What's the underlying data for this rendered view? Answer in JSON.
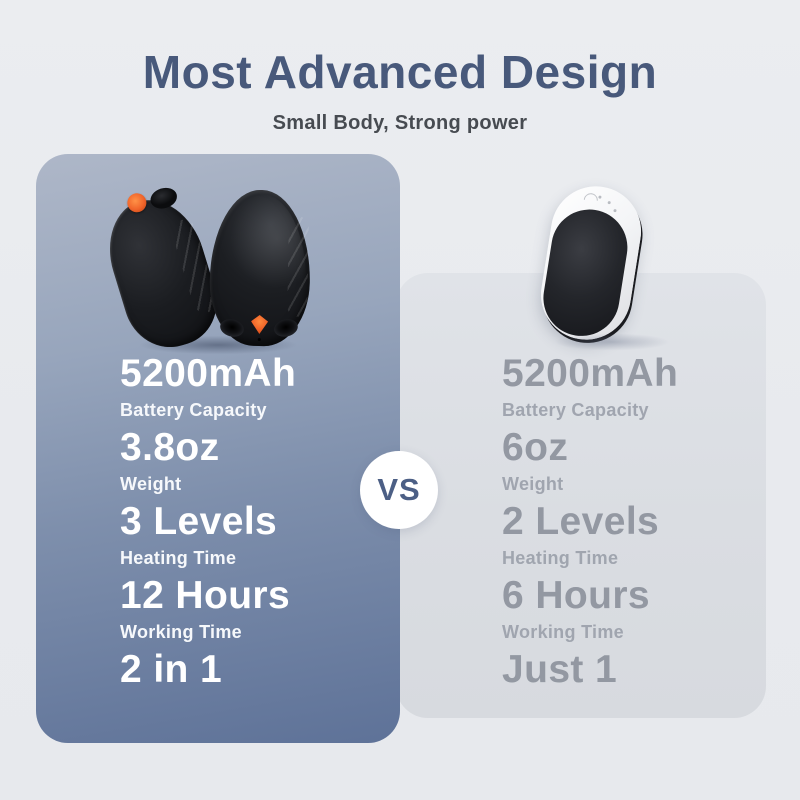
{
  "header": {
    "title": "Most Advanced Design",
    "subtitle": "Small Body, Strong power"
  },
  "vs": {
    "label": "VS"
  },
  "comparison": {
    "left": {
      "specs": [
        {
          "value": "5200mAh",
          "label": "Battery Capacity"
        },
        {
          "value": "3.8oz",
          "label": "Weight"
        },
        {
          "value": "3 Levels",
          "label": "Heating Time"
        },
        {
          "value": "12 Hours",
          "label": "Working Time"
        },
        {
          "value": "2 in 1",
          "label": ""
        }
      ]
    },
    "right": {
      "specs": [
        {
          "value": "5200mAh",
          "label": "Battery Capacity"
        },
        {
          "value": "6oz",
          "label": "Weight"
        },
        {
          "value": "2 Levels",
          "label": "Heating Time"
        },
        {
          "value": "6 Hours",
          "label": "Working Time"
        },
        {
          "value": "Just 1",
          "label": ""
        }
      ]
    }
  },
  "colors": {
    "title": "#48597b",
    "accent_orange": "#f0642a",
    "panel_blue_top": "#aeb7c8",
    "panel_blue_bottom": "#5e7298",
    "panel_gray": "#dcdfe4",
    "right_text": "#9398a2",
    "vs_text": "#4c5f85"
  }
}
